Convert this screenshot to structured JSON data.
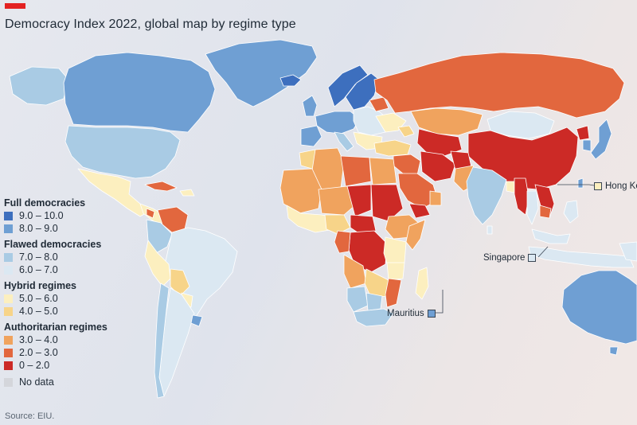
{
  "title": "Democracy Index 2022, global map by regime type",
  "source": "Source: EIU.",
  "colors": {
    "accent": "#e32222",
    "r9_10": "#3d6fbe",
    "r8_9": "#6f9fd3",
    "r7_8": "#a9cbe4",
    "r6_7": "#dbe8f2",
    "r5_6": "#fcefbf",
    "r4_5": "#f7d489",
    "r3_4": "#f0a35e",
    "r2_3": "#e2673e",
    "r0_2": "#cc2a26",
    "nodata": "#d4d6db"
  },
  "legend": [
    {
      "group": "Full democracies",
      "items": [
        {
          "label": "9.0 – 10.0",
          "color": "#3d6fbe"
        },
        {
          "label": "8.0 – 9.0",
          "color": "#6f9fd3"
        }
      ]
    },
    {
      "group": "Flawed democracies",
      "items": [
        {
          "label": "7.0 – 8.0",
          "color": "#a9cbe4"
        },
        {
          "label": "6.0 – 7.0",
          "color": "#dbe8f2"
        }
      ]
    },
    {
      "group": "Hybrid regimes",
      "items": [
        {
          "label": "5.0 – 6.0",
          "color": "#fcefbf"
        },
        {
          "label": "4.0 – 5.0",
          "color": "#f7d489"
        }
      ]
    },
    {
      "group": "Authoritarian regimes",
      "items": [
        {
          "label": "3.0 – 4.0",
          "color": "#f0a35e"
        },
        {
          "label": "2.0 – 3.0",
          "color": "#e2673e"
        },
        {
          "label": "0 – 2.0",
          "color": "#cc2a26"
        }
      ]
    },
    {
      "group": "",
      "items": [
        {
          "label": "No data",
          "color": "#d4d6db"
        }
      ]
    }
  ],
  "callouts": {
    "hong_kong": {
      "label": "Hong Ko",
      "color": "#fcefbf"
    },
    "singapore": {
      "label": "Singapore",
      "color": "#dbe8f2"
    },
    "mauritius": {
      "label": "Mauritius",
      "color": "#6f9fd3"
    }
  }
}
